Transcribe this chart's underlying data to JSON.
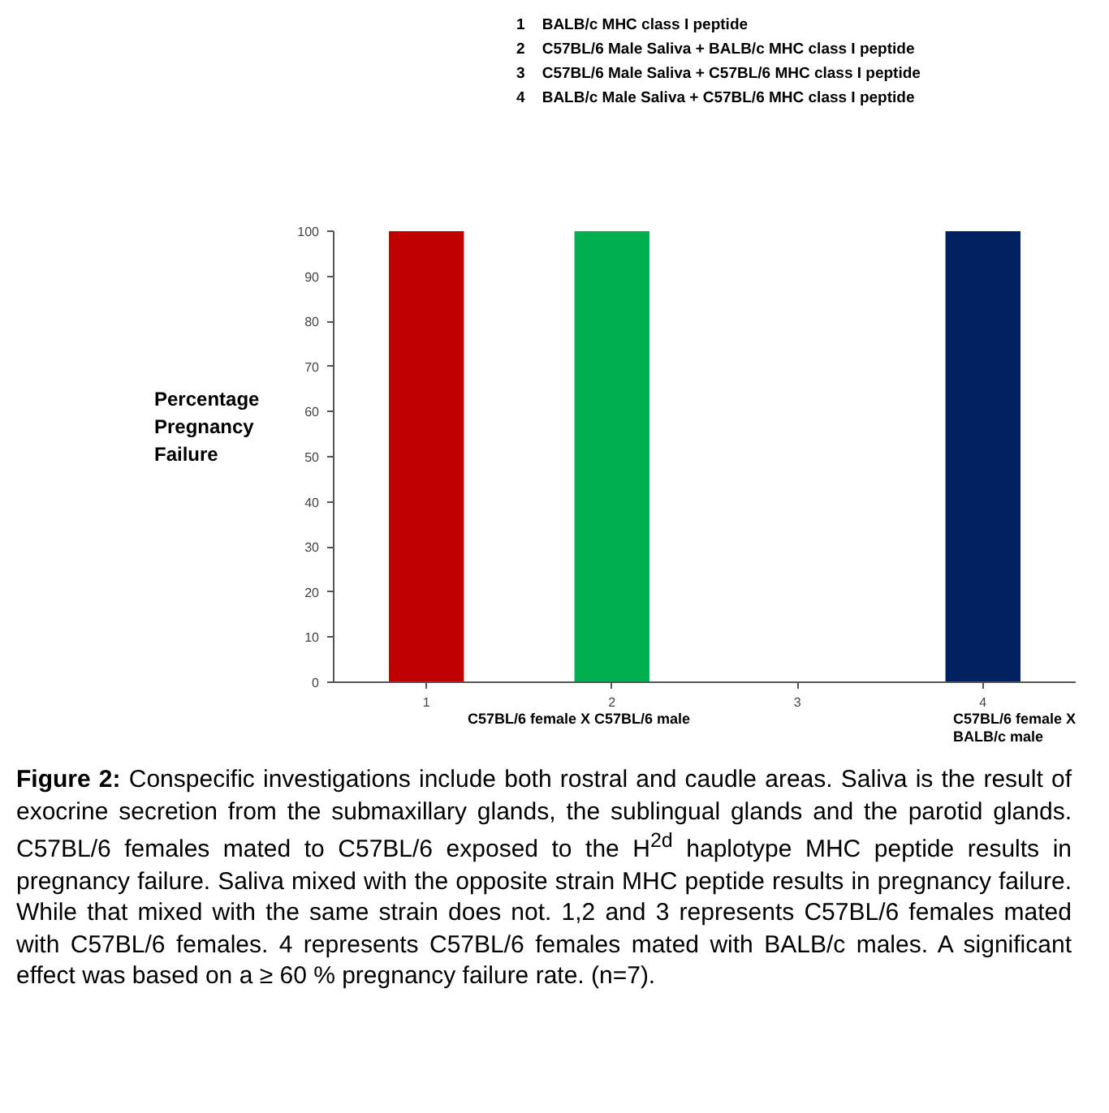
{
  "chart_data": {
    "type": "bar",
    "categories": [
      "1",
      "2",
      "3",
      "4"
    ],
    "values": [
      100,
      100,
      0,
      100
    ],
    "colors": [
      "#c00000",
      "#00b050",
      "#7f7f7f",
      "#002060"
    ],
    "ylabel": "Percentage Pregnancy Failure",
    "ylim": [
      0,
      100
    ],
    "yticks": [
      0,
      10,
      20,
      30,
      40,
      50,
      60,
      70,
      80,
      90,
      100
    ],
    "grid": false,
    "annotations": [
      {
        "text": "1    BALB/c MHC class I peptide"
      },
      {
        "text": "2    C57BL/6 Male Saliva + BALB/c MHC class I peptide"
      },
      {
        "text": "3    C57BL/6 Male Saliva + C57BL/6 MHC class I peptide"
      },
      {
        "text": "4    BALB/c Male Saliva + C57BL/6 MHC class I peptide"
      },
      "C57BL/6 female X  C57BL/6 male",
      "C57BL/6 female X\nBALB/c male",
      {
        "text": "Figure 2: Conspecific investigations include both rostral and caudle areas. Saliva is the result of exocrine secretion from the submaxillary glands, the sublingual glands and the parotid glands. C57BL/6 females mated to C57BL/6 exposed to the H$^{2d}$ haplotype MHC peptide results in pregnancy failure. Saliva mixed with the opposite strain MHC peptide results in pregnancy failure. While that mixed with the same strain does not. 1,2 and 3 represents C57BL/6 females mated with C57BL/6 females. 4 represents C57BL/6 females mated with BALB/c males. A significant effect was based on a ≥ 60 % pregnancy failure rate. (n=7)."
      }
    ]
  }
}
